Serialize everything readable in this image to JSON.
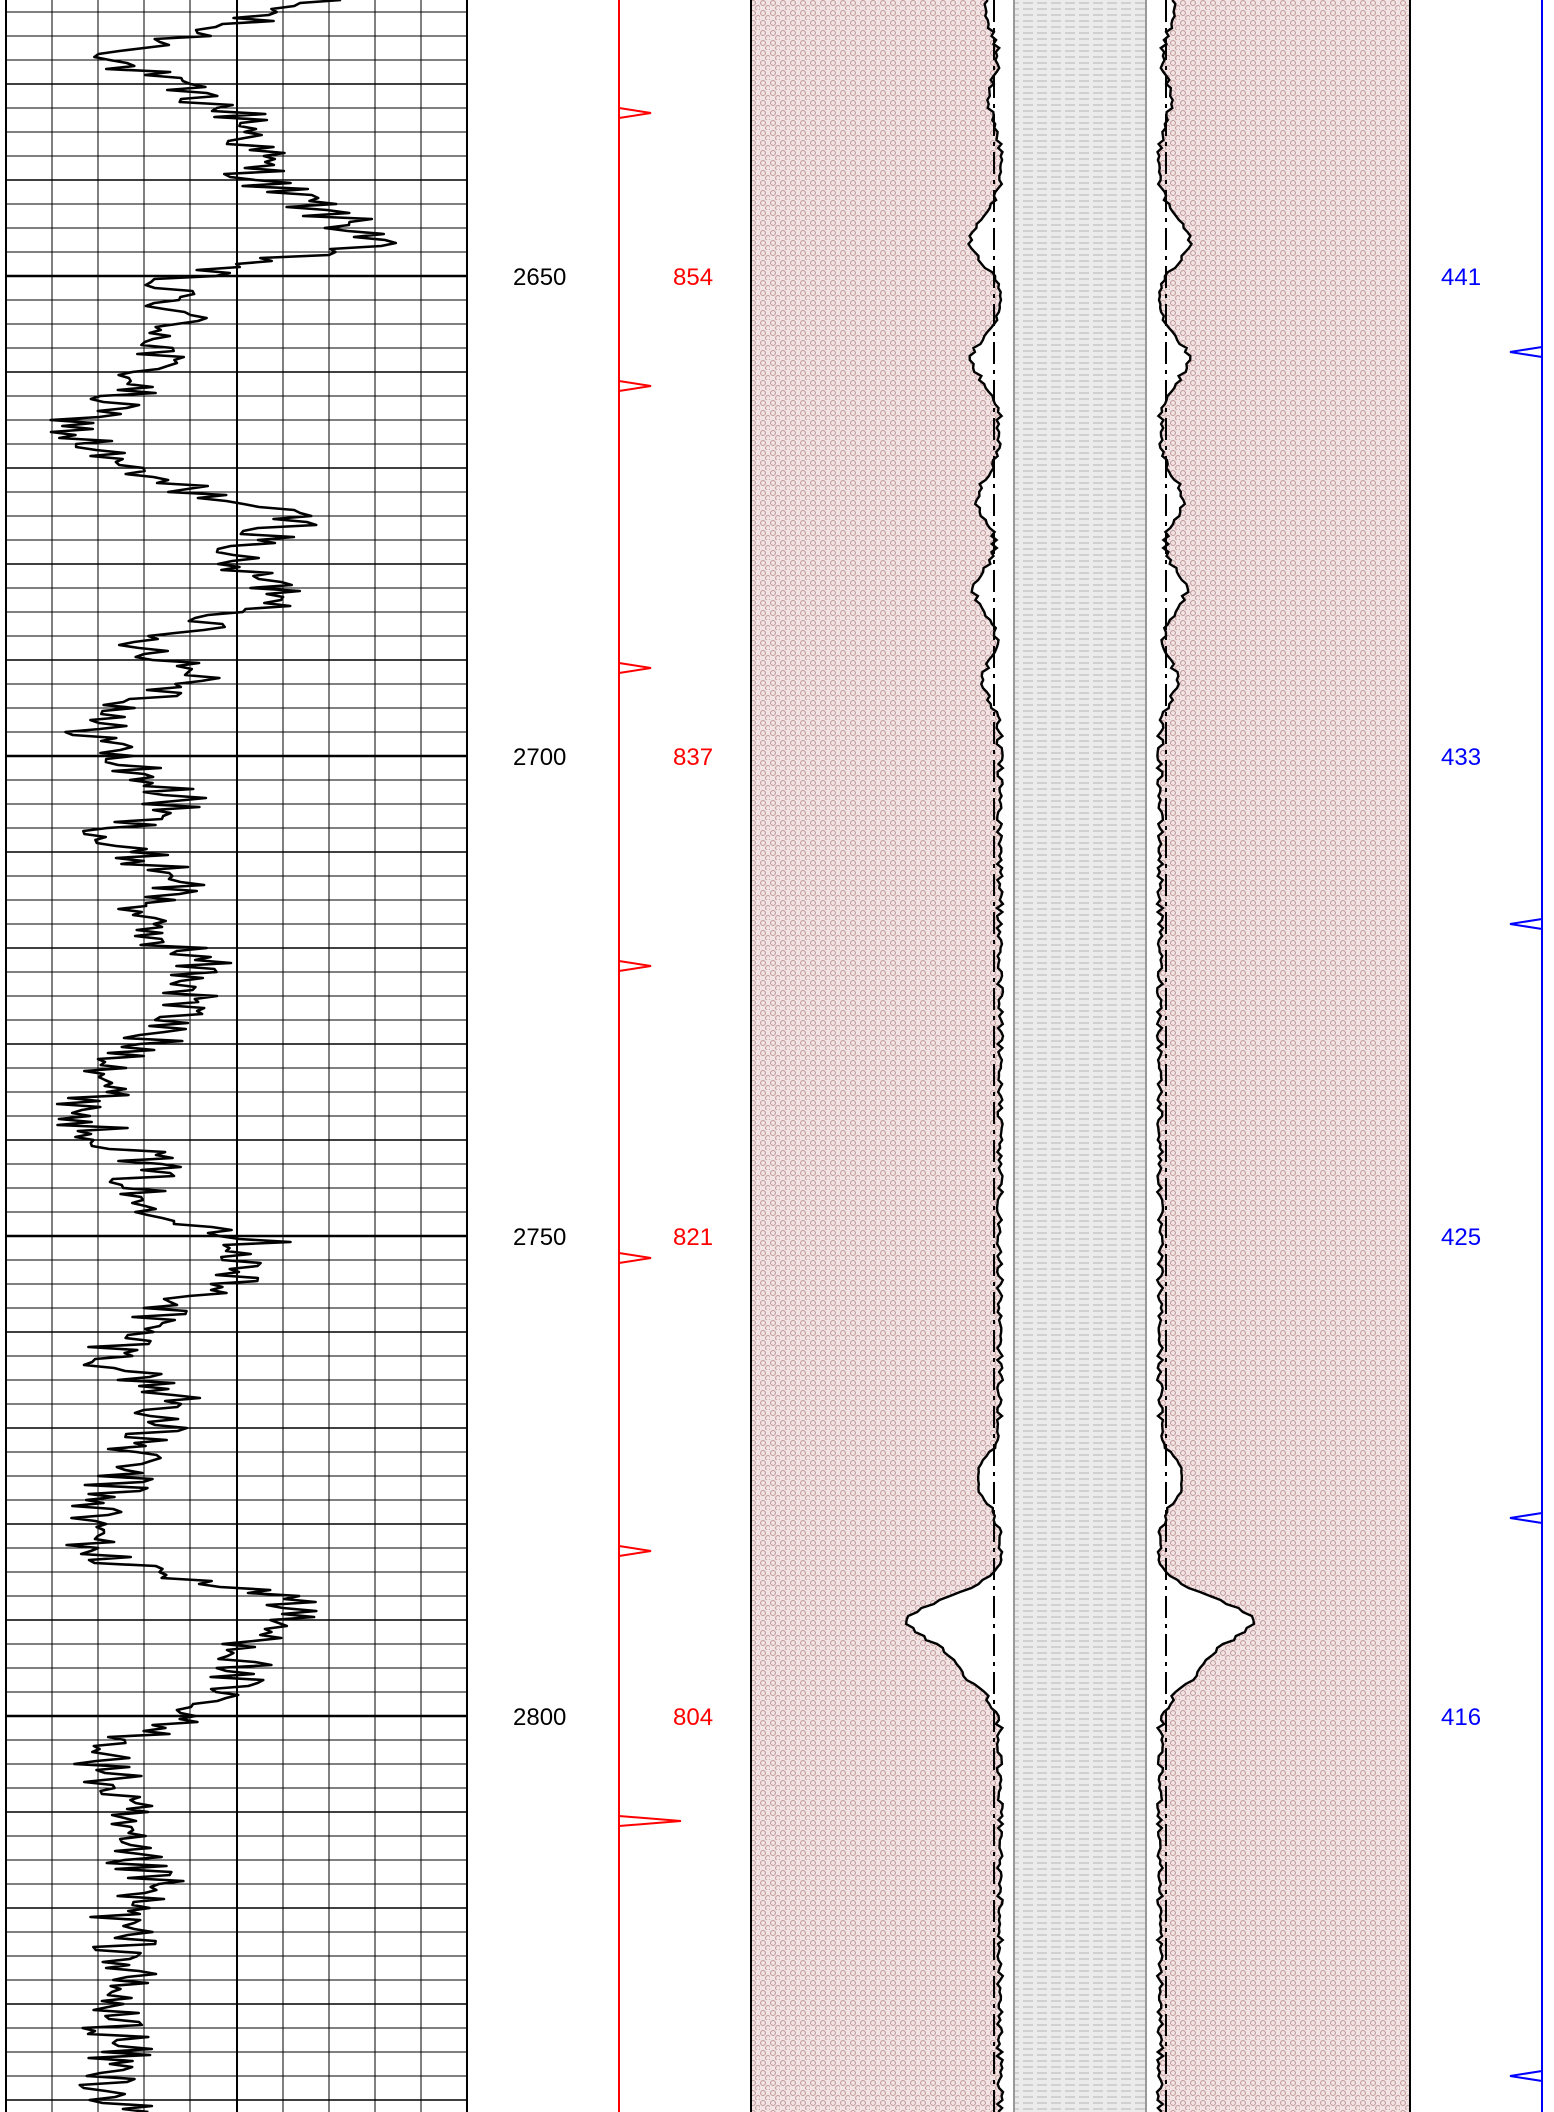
{
  "depth_track": {
    "labels": [
      "2650",
      "2700",
      "2750",
      "2800"
    ],
    "color": "#000000"
  },
  "red_track": {
    "labels": [
      "854",
      "837",
      "821",
      "804"
    ],
    "color": "#ff0000"
  },
  "blue_track": {
    "labels": [
      "441",
      "433",
      "425",
      "416"
    ],
    "color": "#0000ff"
  },
  "lithology": {
    "outer_fill": "#f2e4e4",
    "outer_dot": "#b88a8a",
    "core_fill": "#ebebeb",
    "core_dash": "#b4b4b4"
  },
  "icons": {
    "red_marker": "red-flag-marker-icon",
    "blue_marker": "blue-flag-marker-icon"
  }
}
